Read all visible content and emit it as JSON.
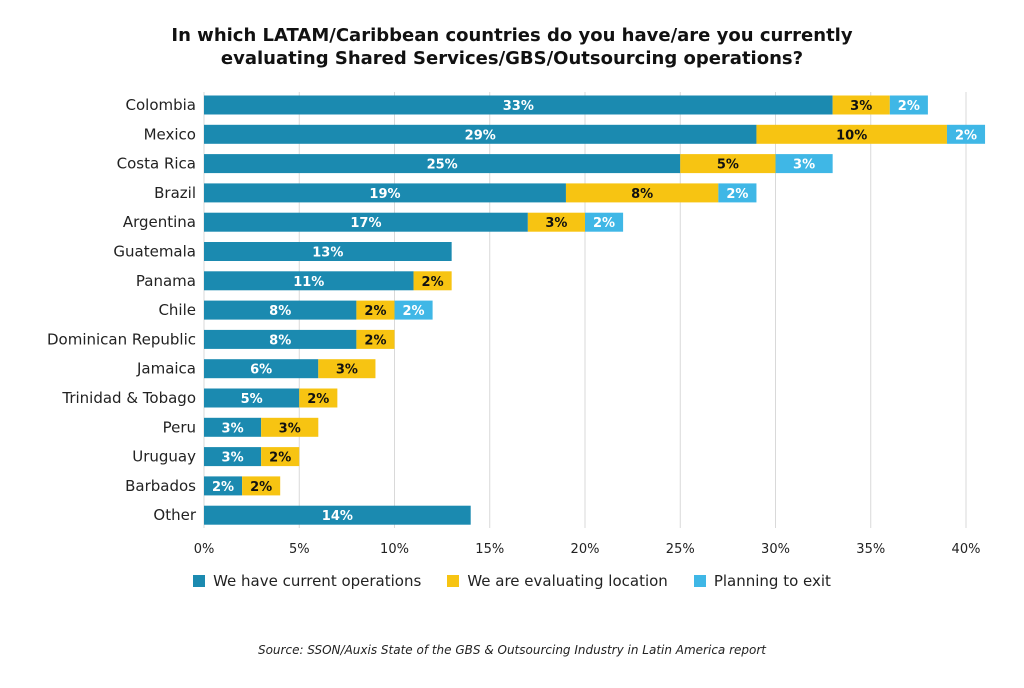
{
  "title_lines": [
    "In which LATAM/Caribbean countries do you have/are you currently",
    "evaluating Shared Services/GBS/Outsourcing operations?"
  ],
  "source": "Source: SSON/Auxis State of the GBS & Outsourcing Industry in Latin America report",
  "colors": {
    "current": "#1b8ab0",
    "evaluating": "#f7c412",
    "exit": "#3fb7e6"
  },
  "chart_data": {
    "type": "bar",
    "orientation": "horizontal",
    "stacked": true,
    "title": "In which LATAM/Caribbean countries do you have/are you currently evaluating Shared Services/GBS/Outsourcing operations?",
    "categories": [
      "Colombia",
      "Mexico",
      "Costa Rica",
      "Brazil",
      "Argentina",
      "Guatemala",
      "Panama",
      "Chile",
      "Dominican Republic",
      "Jamaica",
      "Trinidad & Tobago",
      "Peru",
      "Uruguay",
      "Barbados",
      "Other"
    ],
    "series": [
      {
        "name": "We have current operations",
        "values": [
          33,
          29,
          25,
          19,
          17,
          13,
          11,
          8,
          8,
          6,
          5,
          3,
          3,
          2,
          14
        ]
      },
      {
        "name": "We are evaluating location",
        "values": [
          3,
          10,
          5,
          8,
          3,
          0,
          2,
          2,
          2,
          3,
          2,
          3,
          2,
          2,
          0
        ]
      },
      {
        "name": "Planning to exit",
        "values": [
          2,
          2,
          3,
          2,
          2,
          0,
          0,
          2,
          0,
          0,
          0,
          0,
          0,
          0,
          0
        ]
      }
    ],
    "data_labels": [
      [
        "33%",
        "29%",
        "25%",
        "19%",
        "17%",
        "13%",
        "11%",
        "8%",
        "8%",
        "6%",
        "5%",
        "3%",
        "3%",
        "2%",
        "14%"
      ],
      [
        "3%",
        "10%",
        "5%",
        "8%",
        "3%",
        "",
        "2%",
        "2%",
        "2%",
        "3%",
        "2%",
        "3%",
        "2%",
        "2%",
        ""
      ],
      [
        "2%",
        "2%",
        "3%",
        "2%",
        "2%",
        "",
        "",
        "2%",
        "",
        "",
        "",
        "",
        "",
        "",
        ""
      ]
    ],
    "xlim": [
      0,
      40
    ],
    "x_ticks": [
      0,
      5,
      10,
      15,
      20,
      25,
      30,
      35,
      40
    ],
    "x_tick_labels": [
      "0%",
      "5%",
      "10%",
      "15%",
      "20%",
      "25%",
      "30%",
      "35%",
      "40%"
    ],
    "grid": true,
    "legend_position": "bottom"
  }
}
